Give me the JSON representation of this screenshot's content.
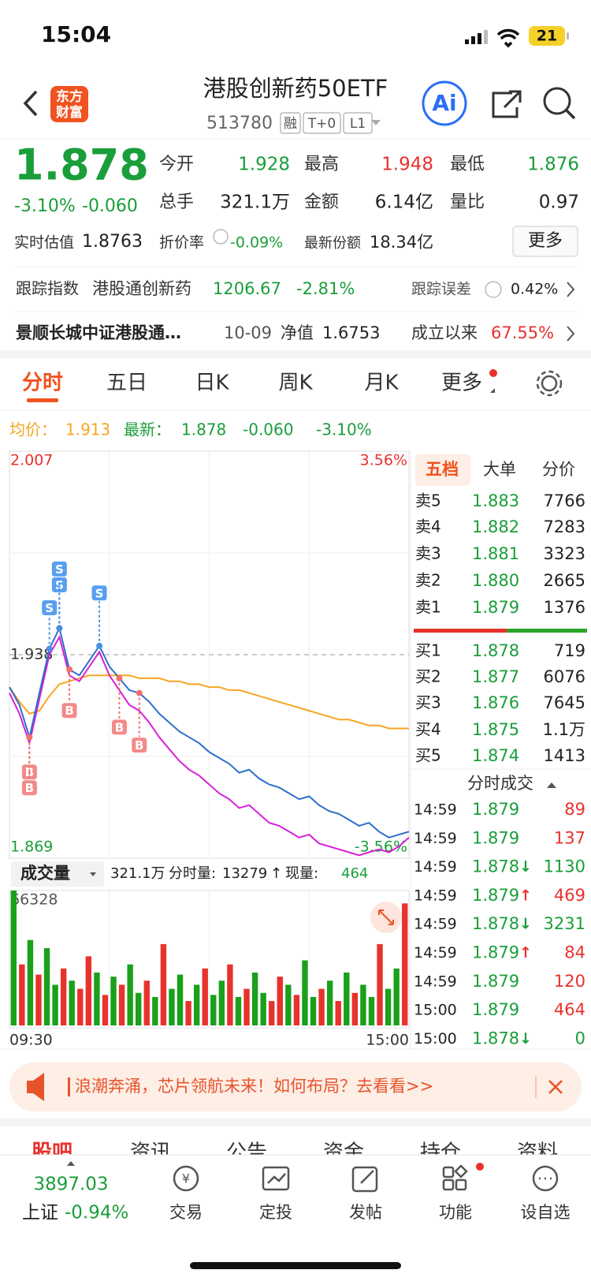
{
  "status_bar": {
    "time": "15:04",
    "battery": "21"
  },
  "header": {
    "logo": [
      "东方",
      "财富"
    ],
    "title": "港股创新药50ETF",
    "code": "513780",
    "tags": [
      "融",
      "T+0",
      "L1"
    ],
    "ai": "Ai"
  },
  "quote": {
    "price": "1.878",
    "change_pct": "-3.10%",
    "change": "-0.060",
    "stats": [
      {
        "label": "今开",
        "value": "1.928",
        "tone": "down"
      },
      {
        "label": "最高",
        "value": "1.948",
        "tone": "up"
      },
      {
        "label": "最低",
        "value": "1.876",
        "tone": "down"
      },
      {
        "label": "总手",
        "value": "321.1万",
        "tone": "flat"
      },
      {
        "label": "金额",
        "value": "6.14亿",
        "tone": "flat"
      },
      {
        "label": "量比",
        "value": "0.97",
        "tone": "flat"
      }
    ],
    "estimate": {
      "label": "实时估值",
      "value": "1.8763"
    },
    "discount": {
      "label": "折价率",
      "value": "-0.09%"
    },
    "shares": {
      "label": "最新份额",
      "value": "18.34亿"
    },
    "more": "更多"
  },
  "tracking": {
    "label": "跟踪指数",
    "index": "港股通创新药",
    "value": "1206.67",
    "change": "-2.81%",
    "error_label": "跟踪误差",
    "error_value": "0.42%"
  },
  "fund": {
    "name": "景顺长城中证港股通…",
    "date": "10-09",
    "nav_label": "净值",
    "nav": "1.6753",
    "since_label": "成立以来",
    "since": "67.55%"
  },
  "tabs": [
    "分时",
    "五日",
    "日K",
    "周K",
    "月K",
    "更多"
  ],
  "chart_legend": {
    "avg_label": "均价：",
    "avg": "1.913",
    "last_label": "最新：",
    "last": "1.878",
    "change": "-0.060",
    "change_pct": "-3.10%"
  },
  "chart_data": [
    {
      "type": "line",
      "ylim": [
        1.869,
        2.007
      ],
      "yticks": [
        2.007,
        1.938,
        1.869
      ],
      "y2lim": [
        -3.56,
        3.56
      ],
      "y2ticks": [
        {
          "value": 3.56,
          "label": "3.56%"
        },
        {
          "value": -3.56,
          "label": "-3.56%"
        }
      ],
      "series": [
        {
          "color": "#2c6fc9",
          "values": [
            1.927,
            1.921,
            1.91,
            1.925,
            1.94,
            1.947,
            1.933,
            1.931,
            1.936,
            1.941,
            1.934,
            1.93,
            1.926,
            1.925,
            1.922,
            1.918,
            1.915,
            1.912,
            1.91,
            1.908,
            1.905,
            1.903,
            1.901,
            1.898,
            1.899,
            1.896,
            1.894,
            1.893,
            1.891,
            1.889,
            1.89,
            1.887,
            1.885,
            1.884,
            1.882,
            1.88,
            1.881,
            1.878,
            1.876,
            1.877,
            1.878
          ]
        },
        {
          "color": "#d81fd8",
          "values": [
            1.925,
            1.918,
            1.908,
            1.923,
            1.938,
            1.944,
            1.931,
            1.929,
            1.934,
            1.939,
            1.931,
            1.926,
            1.921,
            1.919,
            1.915,
            1.91,
            1.906,
            1.902,
            1.899,
            1.897,
            1.894,
            1.891,
            1.889,
            1.886,
            1.887,
            1.884,
            1.881,
            1.88,
            1.878,
            1.876,
            1.877,
            1.874,
            1.873,
            1.872,
            1.871,
            1.87,
            1.871,
            1.872,
            1.871,
            1.873,
            1.876
          ]
        },
        {
          "color": "#f5a623",
          "values": [
            1.927,
            1.922,
            1.918,
            1.919,
            1.924,
            1.928,
            1.929,
            1.93,
            1.931,
            1.931,
            1.931,
            1.931,
            1.931,
            1.93,
            1.93,
            1.93,
            1.929,
            1.929,
            1.928,
            1.928,
            1.927,
            1.927,
            1.926,
            1.926,
            1.925,
            1.924,
            1.923,
            1.922,
            1.921,
            1.92,
            1.919,
            1.918,
            1.917,
            1.916,
            1.916,
            1.915,
            1.914,
            1.914,
            1.913,
            1.913,
            1.913
          ]
        }
      ],
      "trade_marks": [
        {
          "label": "S",
          "x": 4
        },
        {
          "label": "S",
          "x": 5
        },
        {
          "label": "S",
          "x": 5
        },
        {
          "label": "S",
          "x": 9
        },
        {
          "label": "B",
          "x": 2
        },
        {
          "label": "B",
          "x": 2
        },
        {
          "label": "B",
          "x": 6
        },
        {
          "label": "B",
          "x": 11
        },
        {
          "label": "B",
          "x": 13
        }
      ]
    },
    {
      "type": "bar",
      "title": "成交量",
      "total": "321.1万",
      "period_label": "分时量:",
      "period": "13279",
      "arrow": "↑",
      "current_label": "现量:",
      "current": "464",
      "ylim": [
        0,
        66328
      ],
      "yticks": [
        66328
      ],
      "x_labels": [
        "09:30",
        "15:00"
      ],
      "values": [
        66328,
        30000,
        42000,
        25000,
        38000,
        20000,
        28000,
        22000,
        18000,
        34000,
        26000,
        15000,
        24000,
        20000,
        30000,
        16000,
        22000,
        14000,
        40000,
        18000,
        25000,
        12000,
        20000,
        28000,
        15000,
        22000,
        30000,
        14000,
        18000,
        26000,
        16000,
        12000,
        24000,
        20000,
        15000,
        32000,
        14000,
        18000,
        22000,
        12000,
        26000,
        16000,
        20000,
        14000,
        40000,
        18000,
        28000,
        60000
      ],
      "bar_colors": [
        "#1aa01a",
        "#e8322d",
        "#1aa01a",
        "#e8322d",
        "#1aa01a",
        "#1aa01a",
        "#e8322d",
        "#1aa01a",
        "#e8322d",
        "#e8322d",
        "#1aa01a",
        "#e8322d",
        "#1aa01a",
        "#e8322d",
        "#1aa01a",
        "#1aa01a",
        "#e8322d",
        "#1aa01a",
        "#e8322d",
        "#1aa01a",
        "#1aa01a",
        "#e8322d",
        "#1aa01a",
        "#e8322d",
        "#1aa01a",
        "#1aa01a",
        "#e8322d",
        "#1aa01a",
        "#e8322d",
        "#1aa01a",
        "#1aa01a",
        "#e8322d",
        "#e8322d",
        "#1aa01a",
        "#e8322d",
        "#1aa01a",
        "#1aa01a",
        "#e8322d",
        "#1aa01a",
        "#e8322d",
        "#1aa01a",
        "#e8322d",
        "#1aa01a",
        "#1aa01a",
        "#e8322d",
        "#1aa01a",
        "#1aa01a",
        "#e8322d"
      ]
    }
  ],
  "order_book": {
    "tabs": [
      "五档",
      "大单",
      "分价"
    ],
    "asks": [
      {
        "label": "卖5",
        "price": "1.883",
        "volume": "7766"
      },
      {
        "label": "卖4",
        "price": "1.882",
        "volume": "7283"
      },
      {
        "label": "卖3",
        "price": "1.881",
        "volume": "3323"
      },
      {
        "label": "卖2",
        "price": "1.880",
        "volume": "2665"
      },
      {
        "label": "卖1",
        "price": "1.879",
        "volume": "1376"
      }
    ],
    "bids": [
      {
        "label": "买1",
        "price": "1.878",
        "volume": "719"
      },
      {
        "label": "买2",
        "price": "1.877",
        "volume": "6076"
      },
      {
        "label": "买3",
        "price": "1.876",
        "volume": "7645"
      },
      {
        "label": "买4",
        "price": "1.875",
        "volume": "1.1万"
      },
      {
        "label": "买5",
        "price": "1.874",
        "volume": "1413"
      }
    ]
  },
  "trades": {
    "title": "分时成交",
    "rows": [
      {
        "time": "14:59",
        "price": "1.879",
        "volume": "89",
        "tone": "up"
      },
      {
        "time": "14:59",
        "price": "1.879",
        "volume": "137",
        "tone": "up"
      },
      {
        "time": "14:59",
        "price": "1.878",
        "arrow": "↓",
        "volume": "1130",
        "tone": "down"
      },
      {
        "time": "14:59",
        "price": "1.879",
        "arrow": "↑",
        "volume": "469",
        "tone": "up"
      },
      {
        "time": "14:59",
        "price": "1.878",
        "arrow": "↓",
        "volume": "3231",
        "tone": "down"
      },
      {
        "time": "14:59",
        "price": "1.879",
        "arrow": "↑",
        "volume": "84",
        "tone": "up"
      },
      {
        "time": "14:59",
        "price": "1.879",
        "volume": "120",
        "tone": "up"
      },
      {
        "time": "15:00",
        "price": "1.879",
        "volume": "464",
        "tone": "up"
      },
      {
        "time": "15:00",
        "price": "1.878",
        "arrow": "↓",
        "volume": "0",
        "tone": "down"
      }
    ]
  },
  "banner": {
    "text": "浪潮奔涌，芯片领航未来！如何布局？去看看>>"
  },
  "sub_tabs": [
    "股吧",
    "资讯",
    "公告",
    "资金",
    "持仓",
    "资料"
  ],
  "nav": {
    "index": {
      "value": "3897.03",
      "name": "上证",
      "change": "-0.94%"
    },
    "items": [
      "交易",
      "定投",
      "发帖",
      "功能",
      "设自选"
    ]
  }
}
